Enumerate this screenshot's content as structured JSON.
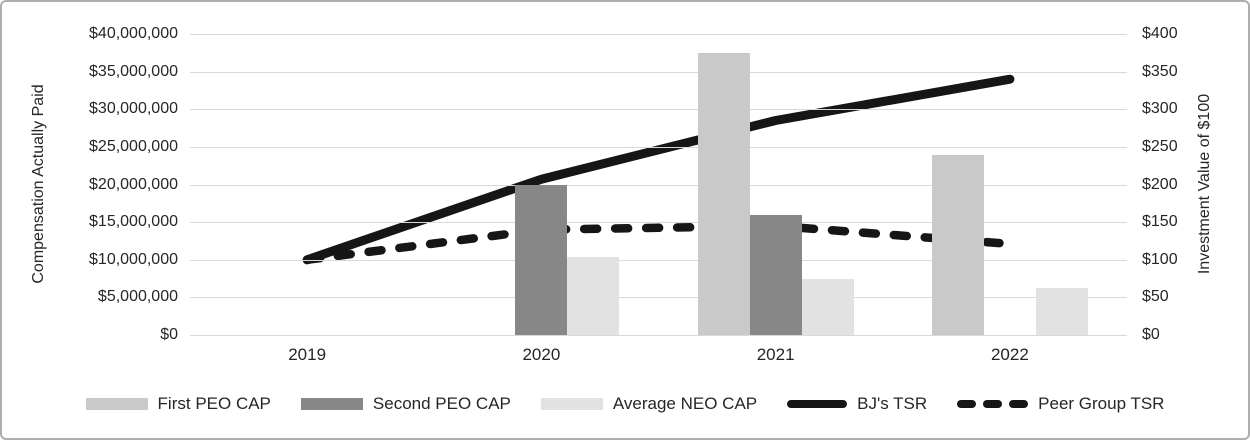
{
  "chart_data": {
    "type": "combo-bar-line",
    "categories": [
      "2019",
      "2020",
      "2021",
      "2022"
    ],
    "bar_series": [
      {
        "name": "First PEO CAP",
        "color": "#c9c9c9",
        "axis": "left",
        "values": [
          null,
          null,
          37500000,
          23900000
        ]
      },
      {
        "name": "Second PEO CAP",
        "color": "#878787",
        "axis": "left",
        "values": [
          null,
          20000000,
          16000000,
          null
        ]
      },
      {
        "name": "Average NEO CAP",
        "color": "#e2e2e2",
        "axis": "left",
        "values": [
          null,
          10400000,
          7500000,
          6300000
        ]
      }
    ],
    "line_series": [
      {
        "name": "BJ's TSR",
        "style": "solid",
        "color": "#161616",
        "axis": "right",
        "values": [
          100,
          207,
          285,
          340
        ]
      },
      {
        "name": "Peer Group TSR",
        "style": "dashed",
        "color": "#161616",
        "axis": "right",
        "values": [
          100,
          140,
          145,
          121
        ]
      }
    ],
    "left_axis": {
      "title": "Compensation Actually Paid",
      "min": 0,
      "max": 40000000,
      "tick_labels": [
        "$0",
        "$5,000,000",
        "$10,000,000",
        "$15,000,000",
        "$20,000,000",
        "$25,000,000",
        "$30,000,000",
        "$35,000,000",
        "$40,000,000"
      ]
    },
    "right_axis": {
      "title": "Investment Value of $100",
      "min": 0,
      "max": 400,
      "tick_labels": [
        "$0",
        "$50",
        "$100",
        "$150",
        "$200",
        "$250",
        "$300",
        "$350",
        "$400"
      ]
    },
    "grid": "horizontal-only",
    "legend_position": "bottom"
  }
}
